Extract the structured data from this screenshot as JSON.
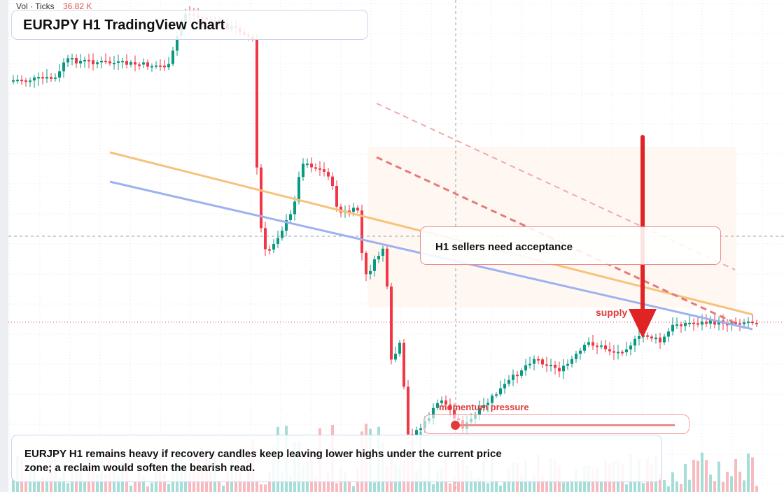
{
  "header": {
    "label": "Vol · Ticks",
    "value": "36.82 K"
  },
  "title": "EURJPY H1 TradingView chart",
  "callout": "H1 sellers need acceptance",
  "zone_label": "supply",
  "slider_label": "momentum pressure",
  "note": "EURJPY H1 remains heavy if recovery candles keep leaving lower highs under the current price zone; a reclaim would soften the bearish read."
}
